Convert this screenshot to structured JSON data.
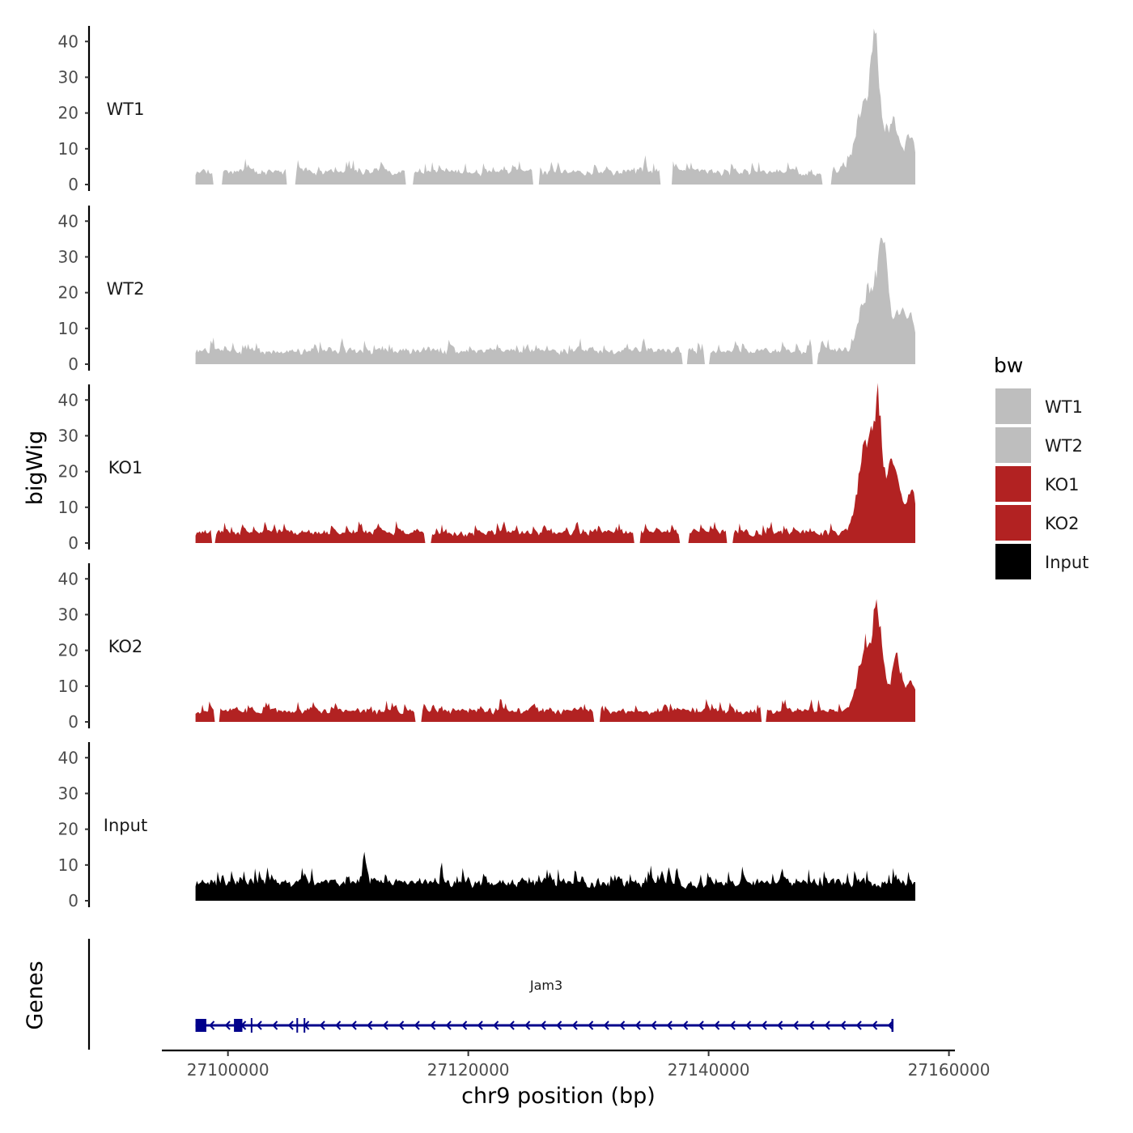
{
  "chart_data": {
    "type": "area",
    "y_axis_title": "bigWig",
    "x_axis_title": "chr9 position (bp)",
    "gene_axis_title": "Genes",
    "y_ticks": [
      "0",
      "10",
      "20",
      "30",
      "40"
    ],
    "y_tick_values": [
      0,
      10,
      20,
      30,
      40
    ],
    "ylim": [
      0,
      43
    ],
    "x_ticks": [
      "27100000",
      "27120000",
      "27140000",
      "27160000"
    ],
    "x_tick_values": [
      27100000,
      27120000,
      27140000,
      27160000
    ],
    "xlim": [
      27094500,
      27160500
    ],
    "data_range": [
      27097300,
      27157200
    ],
    "legend": {
      "title": "bw",
      "position": "right",
      "entries": [
        {
          "name": "WT1",
          "color": "#bebebe"
        },
        {
          "name": "WT2",
          "color": "#bebebe"
        },
        {
          "name": "KO1",
          "color": "#b22222"
        },
        {
          "name": "KO2",
          "color": "#b22222"
        },
        {
          "name": "Input",
          "color": "#000000"
        }
      ]
    },
    "series": [
      {
        "name": "WT1",
        "color": "#bebebe",
        "baseline": 2.5,
        "noise": 3.5,
        "seed": 11,
        "peaks": [
          [
            27153800,
            35,
            500
          ],
          [
            27152800,
            18,
            900
          ],
          [
            27155200,
            14,
            800
          ],
          [
            27156700,
            10,
            500
          ]
        ],
        "gaps": [
          [
            27098700,
            27099500
          ],
          [
            27104800,
            27105600
          ],
          [
            27114800,
            27115400
          ],
          [
            27125300,
            27125900
          ],
          [
            27135900,
            27137000
          ],
          [
            27149400,
            27150200
          ]
        ]
      },
      {
        "name": "WT2",
        "color": "#bebebe",
        "baseline": 2.8,
        "noise": 3.0,
        "seed": 23,
        "peaks": [
          [
            27154400,
            30,
            550
          ],
          [
            27153200,
            17,
            900
          ],
          [
            27155800,
            12,
            700
          ],
          [
            27156800,
            9,
            400
          ]
        ],
        "gaps": [
          [
            27137800,
            27138300
          ],
          [
            27139600,
            27140100
          ],
          [
            27148600,
            27149100
          ]
        ]
      },
      {
        "name": "KO1",
        "color": "#b22222",
        "baseline": 2.2,
        "noise": 3.0,
        "seed": 37,
        "peaks": [
          [
            27154000,
            33,
            550
          ],
          [
            27152900,
            22,
            800
          ],
          [
            27155400,
            20,
            750
          ],
          [
            27156900,
            14,
            400
          ]
        ],
        "gaps": [
          [
            27098600,
            27099000
          ],
          [
            27116400,
            27116900
          ],
          [
            27133800,
            27134300
          ],
          [
            27137600,
            27138400
          ],
          [
            27141500,
            27142000
          ]
        ]
      },
      {
        "name": "KO2",
        "color": "#b22222",
        "baseline": 2.2,
        "noise": 3.0,
        "seed": 53,
        "peaks": [
          [
            27154000,
            27,
            550
          ],
          [
            27152900,
            17,
            800
          ],
          [
            27155600,
            14,
            750
          ],
          [
            27156900,
            8,
            400
          ]
        ],
        "gaps": [
          [
            27098800,
            27099300
          ],
          [
            27115600,
            27116100
          ],
          [
            27130400,
            27131000
          ],
          [
            27144300,
            27144800
          ]
        ]
      },
      {
        "name": "Input",
        "color": "#000000",
        "baseline": 3.6,
        "noise": 4.5,
        "seed": 71,
        "peaks": [
          [
            27111300,
            13,
            120
          ]
        ],
        "gaps": []
      }
    ],
    "gene": {
      "name": "Jam3",
      "strand": "-",
      "start": 27097300,
      "end": 27155300,
      "color": "#00008b",
      "exons": [
        [
          27097300,
          27098200
        ],
        [
          27100500,
          27101200
        ],
        [
          27101900,
          27102000
        ],
        [
          27105700,
          27105800
        ],
        [
          27106300,
          27106400
        ]
      ]
    }
  }
}
